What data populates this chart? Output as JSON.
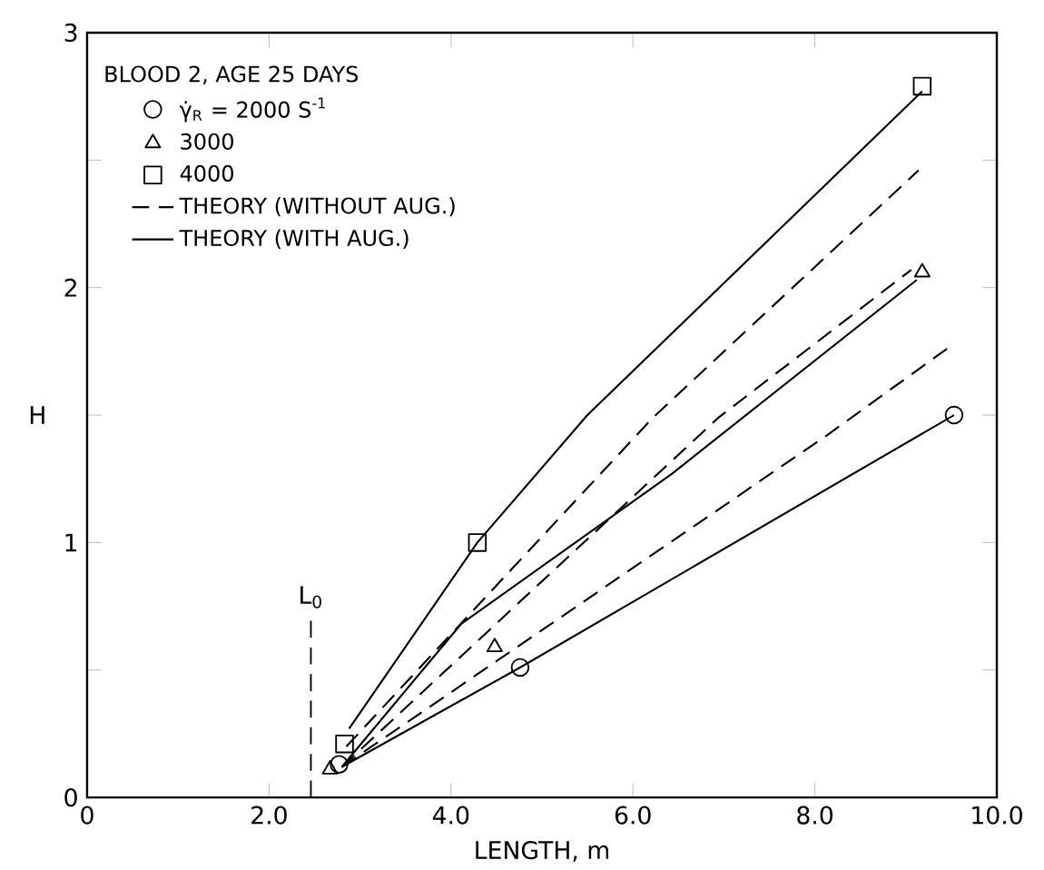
{
  "chart_data": {
    "type": "scatter",
    "xlabel": "LENGTH, m",
    "ylabel": "H",
    "legend_title": "BLOOD 2, AGE 25 DAYS",
    "xlim": [
      0,
      10
    ],
    "ylim": [
      0,
      3
    ],
    "xticks": [
      0,
      {
        "value": 2,
        "label": "2.0"
      },
      {
        "value": 4,
        "label": "4.0"
      },
      {
        "value": 6,
        "label": "6.0"
      },
      {
        "value": 8,
        "label": "8.0"
      },
      {
        "value": 10,
        "label": "10.0"
      }
    ],
    "yticks": [
      0,
      {
        "value": 0.5,
        "label": null
      },
      1,
      {
        "value": 1.5,
        "label": null
      },
      2,
      {
        "value": 2.5,
        "label": null
      },
      3
    ],
    "grid": false,
    "legend": "top left",
    "ref_lines": [
      {
        "axis": "x",
        "value": 2.46,
        "label": "L$_{0}$",
        "line_style": "dashed",
        "color": "#000000"
      }
    ],
    "series": [
      {
        "name": "γ̇$_{R}$ = 2000 S$^{-1}$",
        "marker": "circle",
        "color": "#000000",
        "x": [
          2.77,
          4.76,
          9.53
        ],
        "values": [
          0.13,
          0.51,
          1.5
        ]
      },
      {
        "name": "3000",
        "marker": "triangle",
        "color": "#000000",
        "x": [
          2.67,
          4.48,
          9.18
        ],
        "values": [
          0.11,
          0.59,
          2.06
        ]
      },
      {
        "name": "4000",
        "marker": "square",
        "color": "#000000",
        "x": [
          2.83,
          4.29,
          9.18
        ],
        "values": [
          0.21,
          1.0,
          2.79
        ]
      },
      {
        "name": "THEORY (WITHOUT AUG.)",
        "type": "line",
        "line_style": "dashed",
        "marker": "none",
        "color": "#000000",
        "x": [
          2.85,
          6.22,
          9.14
        ],
        "values": [
          0.2,
          1.49,
          2.46
        ]
      },
      {
        "type": "line",
        "line_style": "dashed",
        "marker": "none",
        "color": "#000000",
        "x": [
          2.8,
          6.94,
          9.06
        ],
        "values": [
          0.12,
          1.49,
          2.07
        ]
      },
      {
        "type": "line",
        "line_style": "dashed",
        "marker": "none",
        "color": "#000000",
        "x": [
          2.8,
          8.13,
          9.49
        ],
        "values": [
          0.12,
          1.42,
          1.77
        ]
      },
      {
        "name": "THEORY (WITH AUG.)",
        "type": "line",
        "line_style": "solid",
        "marker": "none",
        "color": "#000000",
        "x": [
          2.88,
          4.29,
          5.5,
          9.18
        ],
        "values": [
          0.27,
          1.0,
          1.5,
          2.77
        ]
      },
      {
        "type": "line",
        "line_style": "solid",
        "marker": "none",
        "color": "#000000",
        "x": [
          2.8,
          4.11,
          6.43,
          9.12
        ],
        "values": [
          0.12,
          0.68,
          1.27,
          2.03
        ]
      },
      {
        "type": "line",
        "line_style": "solid",
        "marker": "none",
        "color": "#000000",
        "x": [
          2.8,
          4.76,
          9.53
        ],
        "values": [
          0.12,
          0.51,
          1.5
        ]
      }
    ]
  }
}
